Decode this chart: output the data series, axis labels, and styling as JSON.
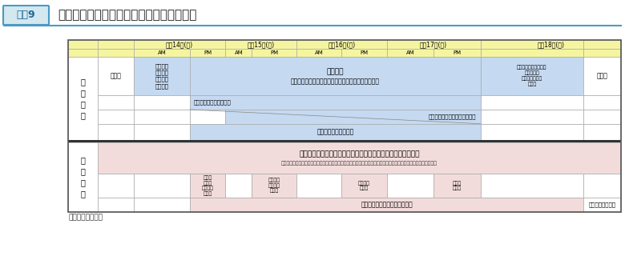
{
  "title": "第３回国連防災世界会議の会議プログラム",
  "figure_label": "図表9",
  "source": "出典：内閣府資料",
  "header_bg": "#f5f5a0",
  "header_dates": [
    "３月14日(土)",
    "３月15日(日)",
    "３月16日(月)",
    "３月17日(火)",
    "３月18日(水)"
  ],
  "am_pm_labels": [
    "AM",
    "PM",
    "AM",
    "PM",
    "AM",
    "PM",
    "AM",
    "PM",
    ""
  ],
  "section_labels": [
    "本\n体\n会\n議",
    "関\n連\n事\n業"
  ],
  "body_bg_blue": "#c5d9f1",
  "body_bg_pink": "#f2dcdb",
  "body_bg_white": "#ffffff",
  "thick_border_color": "#1f1f1f",
  "grid_color": "#999999",
  "title_color": "#1f1f1f",
  "cell_texts": {
    "kaikai": "開会式",
    "zentai1": "全体会合\n（会議運\n営方式等\nの決定）",
    "zentai2": "全体会合\nステートメント（各国ハイレベルから順に意見表明）",
    "post_hyogo": "ポスト兵庫行動枠組、\n政治宣言、\nコミットメント\nの採択",
    "heikai": "閉会式",
    "roundtable": "閣僚級ラウンドテーブル",
    "partnership": "パートナーシップダイアローグ",
    "working": "ワーキングセッション",
    "public_forum": "パブリックフォーラム（シンポジウム、フォーラム、展示等）",
    "public_venue": "（開催場所：東北大学川内萩ホール、仙台市民会館、宮城県民会館、せんだいメディアテーク、夢メッセみやぎ等）",
    "nihonkoku": "日本国\n政府主\n催レセプ\nション",
    "sendai": "仙台市主\n催レセプ\nション",
    "risk": "リスク賞\n授賞式",
    "sendai2": "信川賞\n授賞式",
    "excursion": "エクスカーション",
    "study_tour": "被災地視察（スタディツアー）"
  }
}
